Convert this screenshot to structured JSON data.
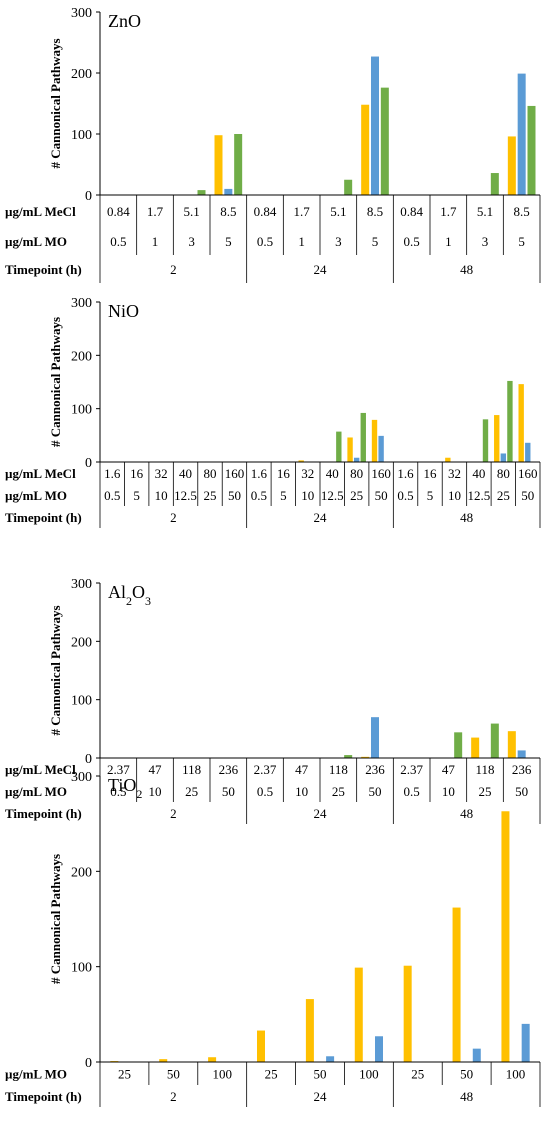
{
  "colors": {
    "yellow": "#FFC000",
    "blue": "#5B9BD5",
    "green": "#70AD47"
  },
  "chart_data": [
    {
      "type": "bar",
      "title": "ZnO",
      "title_main": "ZnO",
      "title_sub": "",
      "title_tail": "",
      "ylabel": "# Cannonical Pathways",
      "ylim": [
        0,
        300
      ],
      "yticks": [
        "0",
        "100",
        "200",
        "300"
      ],
      "row_labels": [
        "µg/mL MeCl",
        "µg/mL MO",
        "Timepoint (h)"
      ],
      "row_mecl": [
        "0.84",
        "1.7",
        "5.1",
        "8.5",
        "0.84",
        "1.7",
        "5.1",
        "8.5",
        "0.84",
        "1.7",
        "5.1",
        "8.5"
      ],
      "row_mo": [
        "0.5",
        "1",
        "3",
        "5",
        "0.5",
        "1",
        "3",
        "5",
        "0.5",
        "1",
        "3",
        "5"
      ],
      "timepoints": [
        "2",
        "24",
        "48"
      ],
      "series": [
        {
          "name": "",
          "color": "yellow",
          "values": [
            0,
            0,
            0,
            98,
            0,
            0,
            0,
            148,
            0,
            0,
            0,
            96
          ]
        },
        {
          "name": "",
          "color": "blue",
          "values": [
            0,
            0,
            0,
            10,
            0,
            0,
            0,
            227,
            0,
            0,
            0,
            199
          ]
        },
        {
          "name": "",
          "color": "green",
          "values": [
            0,
            0,
            8,
            100,
            0,
            0,
            25,
            176,
            0,
            0,
            36,
            146
          ]
        }
      ]
    },
    {
      "type": "bar",
      "title": "NiO",
      "title_main": "NiO",
      "title_sub": "",
      "title_tail": "",
      "ylabel": "# Cannonical Pathways",
      "ylim": [
        0,
        300
      ],
      "yticks": [
        "0",
        "100",
        "200",
        "300"
      ],
      "row_labels": [
        "µg/mL MeCl",
        "µg/mL MO",
        "Timepoint (h)"
      ],
      "row_mecl": [
        "1.6",
        "16",
        "32",
        "40",
        "80",
        "160",
        "1.6",
        "16",
        "32",
        "40",
        "80",
        "160",
        "1.6",
        "16",
        "32",
        "40",
        "80",
        "160"
      ],
      "row_mo": [
        "0.5",
        "5",
        "10",
        "12.5",
        "25",
        "50",
        "0.5",
        "5",
        "10",
        "12.5",
        "25",
        "50",
        "0.5",
        "5",
        "10",
        "12.5",
        "25",
        "50"
      ],
      "timepoints": [
        "2",
        "24",
        "48"
      ],
      "series": [
        {
          "name": "",
          "color": "yellow",
          "values": [
            0,
            0,
            0,
            0,
            0,
            0,
            0,
            0,
            3,
            0,
            46,
            79,
            0,
            0,
            8,
            0,
            88,
            146
          ]
        },
        {
          "name": "",
          "color": "blue",
          "values": [
            0,
            0,
            0,
            0,
            0,
            0,
            0,
            0,
            0,
            0,
            8,
            49,
            0,
            0,
            0,
            0,
            16,
            36
          ]
        },
        {
          "name": "",
          "color": "green",
          "values": [
            0,
            0,
            0,
            0,
            0,
            0,
            0,
            0,
            0,
            57,
            92,
            0,
            0,
            0,
            0,
            80,
            152,
            0
          ]
        }
      ]
    },
    {
      "type": "bar",
      "title": "Al2O3",
      "title_main": "Al",
      "title_sub": "2",
      "title_tail": "O",
      "title_sub2": "3",
      "ylabel": "# Cannonical Pathways",
      "ylim": [
        0,
        300
      ],
      "yticks": [
        "0",
        "100",
        "200",
        "300"
      ],
      "row_labels": [
        "µg/mL MeCl",
        "µg/mL MO",
        "Timepoint (h)"
      ],
      "row_mecl": [
        "2.37",
        "47",
        "118",
        "236",
        "2.37",
        "47",
        "118",
        "236",
        "2.37",
        "47",
        "118",
        "236"
      ],
      "row_mo": [
        "0.5",
        "10",
        "25",
        "50",
        "0.5",
        "10",
        "25",
        "50",
        "0.5",
        "10",
        "25",
        "50"
      ],
      "timepoints": [
        "2",
        "24",
        "48"
      ],
      "series": [
        {
          "name": "",
          "color": "yellow",
          "values": [
            0,
            0,
            0,
            0,
            0,
            0,
            0,
            2,
            0,
            0,
            35,
            46
          ]
        },
        {
          "name": "",
          "color": "blue",
          "values": [
            0,
            0,
            0,
            0,
            0,
            0,
            0,
            70,
            0,
            0,
            0,
            13
          ]
        },
        {
          "name": "",
          "color": "green",
          "values": [
            0,
            0,
            0,
            0,
            0,
            0,
            5,
            0,
            0,
            44,
            59,
            0
          ]
        }
      ]
    },
    {
      "type": "bar",
      "title": "TiO2",
      "title_main": "TiO",
      "title_sub": "2",
      "title_tail": "",
      "ylabel": "# Cannonical Pathways",
      "ylim": [
        0,
        300
      ],
      "yticks": [
        "0",
        "100",
        "200",
        "300"
      ],
      "row_labels": [
        "µg/mL MO",
        "Timepoint (h)"
      ],
      "row_mo": [
        "25",
        "50",
        "100",
        "25",
        "50",
        "100",
        "25",
        "50",
        "100"
      ],
      "timepoints": [
        "2",
        "24",
        "48"
      ],
      "series": [
        {
          "name": "",
          "color": "yellow",
          "values": [
            1,
            3,
            5,
            33,
            66,
            99,
            101,
            162,
            263
          ]
        },
        {
          "name": "",
          "color": "blue",
          "values": [
            0,
            0,
            0,
            0,
            6,
            27,
            0,
            14,
            40
          ]
        }
      ]
    }
  ]
}
